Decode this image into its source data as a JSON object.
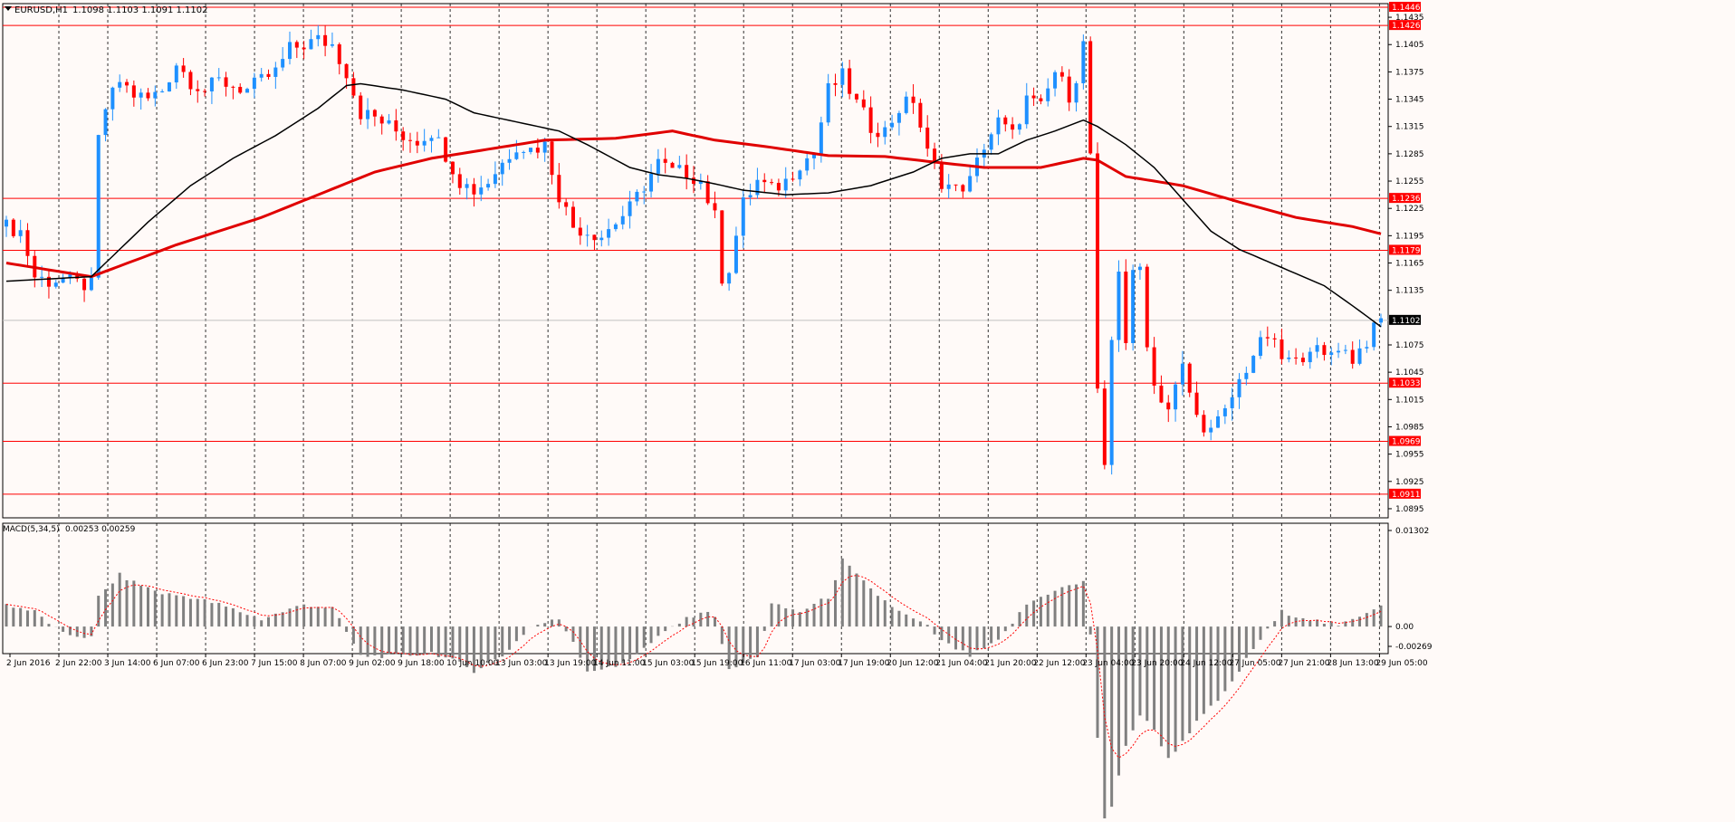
{
  "header": {
    "symbol": "EURUSD,H1",
    "ohlc": "1.1098 1.1103 1.1091 1.1102",
    "macd_label": "MACD(5,34,5)",
    "macd_values": "0.00253 0.00259"
  },
  "colors": {
    "background": "#fffaf8",
    "bull": "#1e90ff",
    "bear": "#ff0000",
    "ma_fast": "#000000",
    "ma_slow": "#e00000",
    "level_line": "#ff0000",
    "price_tag_bg": "#ff0000",
    "current_tag_bg": "#000000",
    "macd_hist": "#808080",
    "macd_signal": "#ff0000",
    "grid": "#000000"
  },
  "chart_data": {
    "type": "candlestick",
    "symbol": "EURUSD",
    "timeframe": "H1",
    "price_ylim": [
      1.0885,
      1.145
    ],
    "y_tick_labels": [
      "1.1435",
      "1.1405",
      "1.1375",
      "1.1345",
      "1.1315",
      "1.1285",
      "1.1255",
      "1.1225",
      "1.1195",
      "1.1165",
      "1.1135",
      "1.1075",
      "1.1045",
      "1.1015",
      "1.0985",
      "1.0955",
      "1.0925",
      "1.0895"
    ],
    "x_tick_labels": [
      "2 Jun 2016",
      "2 Jun 22:00",
      "3 Jun 14:00",
      "6 Jun 07:00",
      "6 Jun 23:00",
      "7 Jun 15:00",
      "8 Jun 07:00",
      "9 Jun 02:00",
      "9 Jun 18:00",
      "10 Jun 10:00",
      "13 Jun 03:00",
      "13 Jun 19:00",
      "14 Jun 11:00",
      "15 Jun 03:00",
      "15 Jun 19:00",
      "16 Jun 11:00",
      "17 Jun 03:00",
      "17 Jun 19:00",
      "20 Jun 12:00",
      "21 Jun 04:00",
      "21 Jun 20:00",
      "22 Jun 12:00",
      "23 Jun 04:00",
      "23 Jun 20:00",
      "24 Jun 12:00",
      "27 Jun 05:00",
      "27 Jun 21:00",
      "28 Jun 13:00",
      "29 Jun 05:00"
    ],
    "horizontal_levels": [
      "1.1446",
      "1.1426",
      "1.1236",
      "1.1179",
      "1.1033",
      "1.0969",
      "1.0911"
    ],
    "current_price": "1.1102",
    "price_path": [
      [
        0,
        1.1205
      ],
      [
        2,
        1.12
      ],
      [
        4,
        1.115
      ],
      [
        6,
        1.1145
      ],
      [
        8,
        1.1148
      ],
      [
        10,
        1.1142
      ],
      [
        12,
        1.114
      ],
      [
        13,
        1.13
      ],
      [
        14,
        1.1335
      ],
      [
        16,
        1.1365
      ],
      [
        18,
        1.135
      ],
      [
        20,
        1.1345
      ],
      [
        22,
        1.1355
      ],
      [
        24,
        1.1385
      ],
      [
        26,
        1.1365
      ],
      [
        28,
        1.1355
      ],
      [
        30,
        1.1365
      ],
      [
        32,
        1.136
      ],
      [
        34,
        1.1355
      ],
      [
        36,
        1.1365
      ],
      [
        38,
        1.1375
      ],
      [
        40,
        1.14
      ],
      [
        42,
        1.1405
      ],
      [
        44,
        1.141
      ],
      [
        46,
        1.1405
      ],
      [
        48,
        1.1375
      ],
      [
        50,
        1.133
      ],
      [
        52,
        1.1325
      ],
      [
        54,
        1.1315
      ],
      [
        56,
        1.1305
      ],
      [
        58,
        1.13
      ],
      [
        60,
        1.131
      ],
      [
        62,
        1.1285
      ],
      [
        64,
        1.1255
      ],
      [
        66,
        1.1245
      ],
      [
        68,
        1.1255
      ],
      [
        70,
        1.1275
      ],
      [
        72,
        1.1295
      ],
      [
        74,
        1.129
      ],
      [
        76,
        1.1295
      ],
      [
        78,
        1.124
      ],
      [
        80,
        1.1205
      ],
      [
        82,
        1.12
      ],
      [
        84,
        1.1195
      ],
      [
        86,
        1.121
      ],
      [
        88,
        1.1225
      ],
      [
        90,
        1.125
      ],
      [
        92,
        1.1275
      ],
      [
        94,
        1.1265
      ],
      [
        96,
        1.1265
      ],
      [
        98,
        1.1255
      ],
      [
        100,
        1.1215
      ],
      [
        101,
        1.115
      ],
      [
        102,
        1.116
      ],
      [
        104,
        1.123
      ],
      [
        106,
        1.1255
      ],
      [
        108,
        1.1245
      ],
      [
        110,
        1.1255
      ],
      [
        112,
        1.1275
      ],
      [
        114,
        1.1285
      ],
      [
        116,
        1.1355
      ],
      [
        118,
        1.137
      ],
      [
        120,
        1.134
      ],
      [
        122,
        1.1315
      ],
      [
        124,
        1.131
      ],
      [
        126,
        1.1335
      ],
      [
        128,
        1.1345
      ],
      [
        130,
        1.1285
      ],
      [
        132,
        1.1255
      ],
      [
        134,
        1.1245
      ],
      [
        136,
        1.1255
      ],
      [
        138,
        1.1295
      ],
      [
        140,
        1.132
      ],
      [
        142,
        1.1305
      ],
      [
        144,
        1.1345
      ],
      [
        146,
        1.1335
      ],
      [
        148,
        1.1375
      ],
      [
        150,
        1.135
      ],
      [
        151,
        1.137
      ],
      [
        152,
        1.1405
      ],
      [
        153,
        1.1285
      ],
      [
        154,
        1.102
      ],
      [
        155,
        1.0935
      ],
      [
        156,
        1.108
      ],
      [
        157,
        1.116
      ],
      [
        158,
        1.108
      ],
      [
        159,
        1.115
      ],
      [
        160,
        1.116
      ],
      [
        161,
        1.108
      ],
      [
        162,
        1.103
      ],
      [
        164,
        1.1005
      ],
      [
        166,
        1.105
      ],
      [
        168,
        1.0995
      ],
      [
        170,
        1.098
      ],
      [
        172,
        1.1
      ],
      [
        174,
        1.1035
      ],
      [
        176,
        1.1065
      ],
      [
        178,
        1.1085
      ],
      [
        180,
        1.106
      ],
      [
        182,
        1.1055
      ],
      [
        184,
        1.1075
      ],
      [
        186,
        1.106
      ],
      [
        188,
        1.1075
      ],
      [
        190,
        1.106
      ],
      [
        192,
        1.108
      ],
      [
        194,
        1.1102
      ]
    ],
    "ma_fast_path": [
      [
        0,
        1.1145
      ],
      [
        12,
        1.115
      ],
      [
        20,
        1.121
      ],
      [
        26,
        1.125
      ],
      [
        32,
        1.128
      ],
      [
        38,
        1.1305
      ],
      [
        44,
        1.1335
      ],
      [
        48,
        1.136
      ],
      [
        50,
        1.1362
      ],
      [
        56,
        1.1355
      ],
      [
        62,
        1.1345
      ],
      [
        66,
        1.133
      ],
      [
        72,
        1.132
      ],
      [
        78,
        1.131
      ],
      [
        82,
        1.1295
      ],
      [
        88,
        1.127
      ],
      [
        92,
        1.1262
      ],
      [
        96,
        1.1258
      ],
      [
        100,
        1.1252
      ],
      [
        104,
        1.1245
      ],
      [
        110,
        1.124
      ],
      [
        116,
        1.1242
      ],
      [
        122,
        1.125
      ],
      [
        128,
        1.1265
      ],
      [
        132,
        1.128
      ],
      [
        136,
        1.1285
      ],
      [
        140,
        1.1285
      ],
      [
        144,
        1.13
      ],
      [
        148,
        1.131
      ],
      [
        152,
        1.1322
      ],
      [
        154,
        1.1315
      ],
      [
        158,
        1.1295
      ],
      [
        162,
        1.127
      ],
      [
        166,
        1.1235
      ],
      [
        170,
        1.12
      ],
      [
        174,
        1.118
      ],
      [
        180,
        1.116
      ],
      [
        186,
        1.114
      ],
      [
        190,
        1.1118
      ],
      [
        194,
        1.1095
      ]
    ],
    "ma_slow_path": [
      [
        0,
        1.1165
      ],
      [
        12,
        1.115
      ],
      [
        24,
        1.1185
      ],
      [
        36,
        1.1215
      ],
      [
        44,
        1.124
      ],
      [
        52,
        1.1265
      ],
      [
        60,
        1.128
      ],
      [
        68,
        1.129
      ],
      [
        76,
        1.13
      ],
      [
        86,
        1.1302
      ],
      [
        94,
        1.131
      ],
      [
        100,
        1.13
      ],
      [
        108,
        1.1292
      ],
      [
        116,
        1.1283
      ],
      [
        124,
        1.1282
      ],
      [
        132,
        1.1275
      ],
      [
        138,
        1.127
      ],
      [
        146,
        1.127
      ],
      [
        152,
        1.128
      ],
      [
        154,
        1.1278
      ],
      [
        158,
        1.126
      ],
      [
        166,
        1.125
      ],
      [
        174,
        1.1232
      ],
      [
        182,
        1.1215
      ],
      [
        190,
        1.1205
      ],
      [
        194,
        1.1197
      ]
    ],
    "macd_ylim": [
      -0.00269,
      0.01302
    ],
    "macd_tick_labels": [
      "0.01302",
      "0.00",
      "-0.00269"
    ],
    "macd_path": [
      [
        0,
        0.003
      ],
      [
        4,
        0.002
      ],
      [
        8,
        -0.001
      ],
      [
        12,
        -0.0015
      ],
      [
        13,
        0.004
      ],
      [
        16,
        0.007
      ],
      [
        18,
        0.006
      ],
      [
        22,
        0.0045
      ],
      [
        26,
        0.004
      ],
      [
        30,
        0.003
      ],
      [
        36,
        0.001
      ],
      [
        42,
        0.003
      ],
      [
        46,
        0.0025
      ],
      [
        50,
        -0.004
      ],
      [
        56,
        -0.004
      ],
      [
        60,
        -0.0035
      ],
      [
        64,
        -0.005
      ],
      [
        66,
        -0.006
      ],
      [
        70,
        -0.004
      ],
      [
        74,
        0.0
      ],
      [
        78,
        0.001
      ],
      [
        80,
        -0.002
      ],
      [
        82,
        -0.006
      ],
      [
        86,
        -0.0055
      ],
      [
        90,
        -0.003
      ],
      [
        94,
        0.0
      ],
      [
        98,
        0.002
      ],
      [
        100,
        0.0015
      ],
      [
        102,
        -0.006
      ],
      [
        104,
        -0.005
      ],
      [
        106,
        -0.004
      ],
      [
        108,
        0.003
      ],
      [
        112,
        0.002
      ],
      [
        116,
        0.004
      ],
      [
        118,
        0.009
      ],
      [
        122,
        0.005
      ],
      [
        126,
        0.002
      ],
      [
        130,
        0.0
      ],
      [
        132,
        -0.002
      ],
      [
        136,
        -0.004
      ],
      [
        140,
        -0.002
      ],
      [
        144,
        0.003
      ],
      [
        148,
        0.005
      ],
      [
        152,
        0.006
      ],
      [
        153,
        -0.001
      ],
      [
        155,
        -0.029
      ],
      [
        158,
        -0.016
      ],
      [
        160,
        -0.012
      ],
      [
        162,
        -0.014
      ],
      [
        164,
        -0.018
      ],
      [
        168,
        -0.013
      ],
      [
        172,
        -0.009
      ],
      [
        176,
        -0.003
      ],
      [
        180,
        0.002
      ],
      [
        184,
        0.001
      ],
      [
        188,
        0.0
      ],
      [
        192,
        0.002
      ],
      [
        194,
        0.003
      ]
    ]
  }
}
